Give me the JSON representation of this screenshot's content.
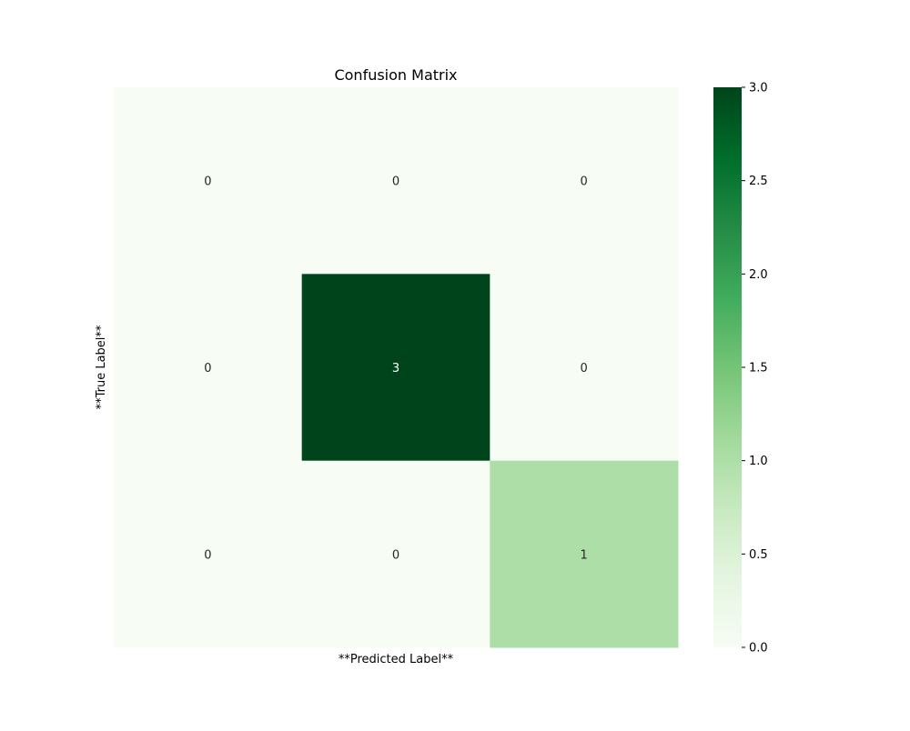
{
  "chart_data": {
    "type": "heatmap",
    "title": "Confusion Matrix",
    "xlabel": "**Predicted Label**",
    "ylabel": "**True Label**",
    "rows": 3,
    "cols": 3,
    "values": [
      [
        0,
        0,
        0
      ],
      [
        0,
        3,
        0
      ],
      [
        0,
        0,
        1
      ]
    ],
    "colormap": "Greens",
    "vmin": 0,
    "vmax": 3,
    "annotations": true,
    "colorbar": {
      "ticks": [
        "0.0",
        "0.5",
        "1.0",
        "1.5",
        "2.0",
        "2.5",
        "3.0"
      ],
      "tick_values": [
        0,
        0.5,
        1,
        1.5,
        2,
        2.5,
        3
      ]
    },
    "x_tick_labels": [],
    "y_tick_labels": []
  }
}
